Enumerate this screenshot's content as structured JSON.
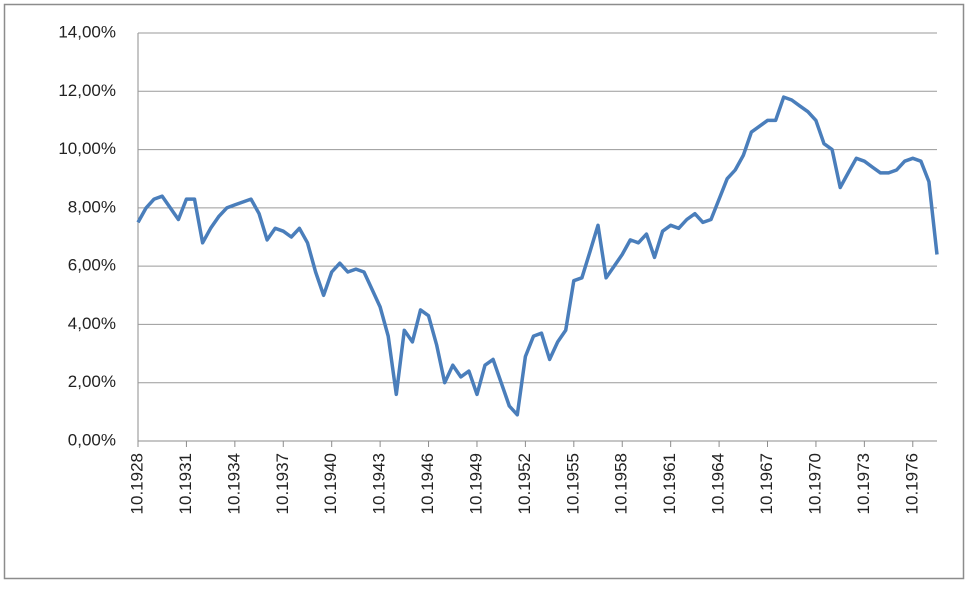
{
  "chart_data": {
    "type": "line",
    "color": "#4a7ebb",
    "grid": true,
    "categories": [
      "10.1928",
      null,
      null,
      null,
      null,
      null,
      "10.1931",
      null,
      null,
      null,
      null,
      null,
      "10.1934",
      null,
      null,
      null,
      null,
      null,
      "10.1937",
      null,
      null,
      null,
      null,
      null,
      "10.1940",
      null,
      null,
      null,
      null,
      null,
      "10.1943",
      null,
      null,
      null,
      null,
      null,
      "10.1946",
      null,
      null,
      null,
      null,
      null,
      "10.1949",
      null,
      null,
      null,
      null,
      null,
      "10.1952",
      null,
      null,
      null,
      null,
      null,
      "10.1955",
      null,
      null,
      null,
      null,
      null,
      "10.1958",
      null,
      null,
      null,
      null,
      null,
      "10.1961",
      null,
      null,
      null,
      null,
      null,
      "10.1964",
      null,
      null,
      null,
      null,
      null,
      "10.1967",
      null,
      null,
      null,
      null,
      null,
      "10.1970",
      null,
      null,
      null,
      null,
      null,
      "10.1973",
      null,
      null,
      null,
      null,
      null,
      "10.1976",
      null,
      null,
      null
    ],
    "values": [
      7.5,
      8.0,
      8.3,
      8.4,
      8.0,
      7.6,
      8.3,
      8.3,
      6.8,
      7.3,
      7.7,
      8.0,
      8.1,
      8.2,
      8.3,
      7.8,
      6.9,
      7.3,
      7.2,
      7.0,
      7.3,
      6.8,
      5.8,
      5.0,
      5.8,
      6.1,
      5.8,
      5.9,
      5.8,
      5.2,
      4.6,
      3.6,
      1.6,
      3.8,
      3.4,
      4.5,
      4.3,
      3.3,
      2.0,
      2.6,
      2.2,
      2.4,
      1.6,
      2.6,
      2.8,
      2.0,
      1.2,
      0.9,
      2.9,
      3.6,
      3.7,
      2.8,
      3.4,
      3.8,
      5.5,
      5.6,
      6.5,
      7.4,
      5.6,
      6.0,
      6.4,
      6.9,
      6.8,
      7.1,
      6.3,
      7.2,
      7.4,
      7.3,
      7.6,
      7.8,
      7.5,
      7.6,
      8.3,
      9.0,
      9.3,
      9.8,
      10.6,
      10.8,
      11.0,
      11.0,
      11.8,
      11.7,
      11.5,
      11.3,
      11.0,
      10.2,
      10.0,
      8.7,
      9.2,
      9.7,
      9.6,
      9.4,
      9.2,
      9.2,
      9.3,
      9.6,
      9.7,
      9.6,
      8.9,
      6.4
    ],
    "ylim": [
      0,
      14
    ],
    "yticks": [
      {
        "value": 0,
        "label": "0,00%"
      },
      {
        "value": 2,
        "label": "2,00%"
      },
      {
        "value": 4,
        "label": "4,00%"
      },
      {
        "value": 6,
        "label": "6,00%"
      },
      {
        "value": 8,
        "label": "8,00%"
      },
      {
        "value": 10,
        "label": "10,00%"
      },
      {
        "value": 12,
        "label": "12,00%"
      },
      {
        "value": 14,
        "label": "14,00%"
      }
    ]
  }
}
